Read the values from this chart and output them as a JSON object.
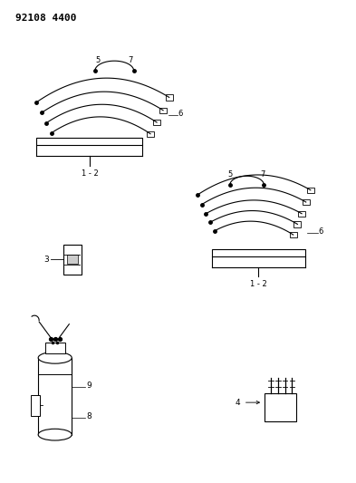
{
  "title": "92108 4400",
  "bg_color": "#ffffff",
  "line_color": "#000000",
  "fig_width": 3.93,
  "fig_height": 5.33,
  "dpi": 100
}
